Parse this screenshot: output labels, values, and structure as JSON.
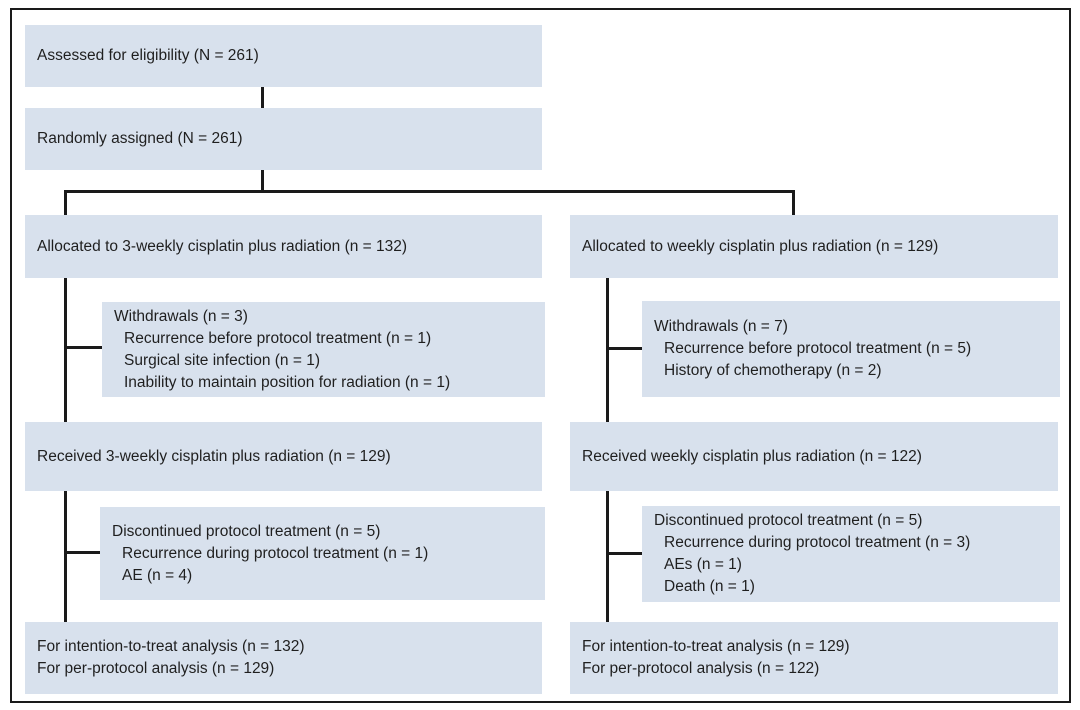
{
  "figure": {
    "type": "consort-flow-diagram",
    "colors": {
      "box_bg": "#d8e1ed",
      "line": "#1a1a1a",
      "text": "#1f1f1f"
    },
    "boxes": {
      "assessed": {
        "title": "Assessed for eligibility (N = 261)"
      },
      "randomized": {
        "title": "Randomly assigned (N = 261)"
      },
      "alloc_3weekly": {
        "title": "Allocated to 3-weekly cisplatin plus radiation (n = 132)"
      },
      "alloc_weekly": {
        "title": "Allocated to weekly cisplatin plus radiation (n = 129)"
      },
      "withdrawals_3weekly": {
        "title": "Withdrawals (n = 3)",
        "items": [
          "Recurrence before protocol treatment (n = 1)",
          "Surgical site infection (n = 1)",
          "Inability to maintain position for radiation (n = 1)"
        ]
      },
      "withdrawals_weekly": {
        "title": "Withdrawals (n = 7)",
        "items": [
          "Recurrence before protocol treatment (n = 5)",
          "History of chemotherapy (n = 2)"
        ]
      },
      "received_3weekly": {
        "title": "Received 3-weekly cisplatin plus radiation (n = 129)"
      },
      "received_weekly": {
        "title": "Received weekly cisplatin plus radiation (n = 122)"
      },
      "discontinued_3weekly": {
        "title": "Discontinued protocol treatment (n = 5)",
        "items": [
          "Recurrence during protocol treatment (n = 1)",
          "AE (n = 4)"
        ]
      },
      "discontinued_weekly": {
        "title": "Discontinued protocol treatment (n = 5)",
        "items": [
          "Recurrence during protocol treatment (n = 3)",
          "AEs (n = 1)",
          "Death (n = 1)"
        ]
      },
      "analysis_3weekly": {
        "lines": [
          "For intention-to-treat analysis (n = 132)",
          "For per-protocol analysis (n = 129)"
        ]
      },
      "analysis_weekly": {
        "lines": [
          "For intention-to-treat analysis (n = 129)",
          "For per-protocol analysis (n = 122)"
        ]
      }
    }
  }
}
